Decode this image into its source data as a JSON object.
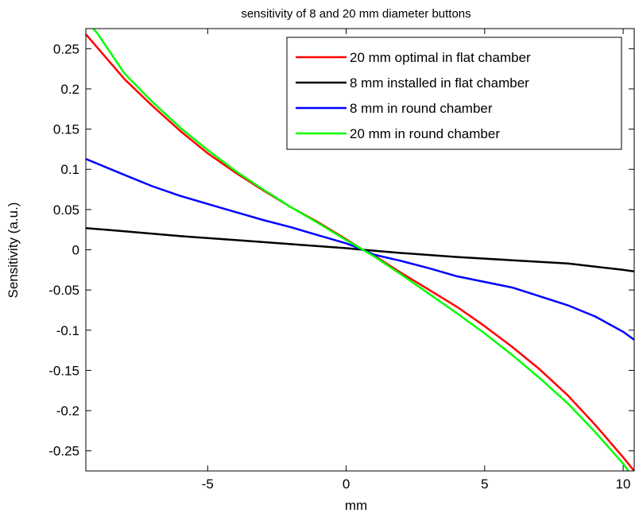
{
  "chart_data": {
    "type": "line",
    "title": "sensitivity of 8 and 20 mm diameter buttons",
    "xlabel": "mm",
    "ylabel": "Sensitivity (a.u.)",
    "xlim": [
      -9.4,
      10.4
    ],
    "ylim": [
      -0.275,
      0.275
    ],
    "x_ticks": [
      {
        "value": -5,
        "label": "-5"
      },
      {
        "value": 0,
        "label": "0"
      },
      {
        "value": 5,
        "label": "5"
      },
      {
        "value": 10,
        "label": "10"
      }
    ],
    "y_ticks": [
      {
        "value": 0.25,
        "label": "0.25"
      },
      {
        "value": 0.2,
        "label": "0.2"
      },
      {
        "value": 0.15,
        "label": "0.15"
      },
      {
        "value": 0.1,
        "label": "0.1"
      },
      {
        "value": 0.05,
        "label": "0.05"
      },
      {
        "value": 0,
        "label": "0"
      },
      {
        "value": -0.05,
        "label": "-0.05"
      },
      {
        "value": -0.1,
        "label": "-0.1"
      },
      {
        "value": -0.15,
        "label": "-0.15"
      },
      {
        "value": -0.2,
        "label": "-0.2"
      },
      {
        "value": -0.25,
        "label": "-0.25"
      }
    ],
    "grid": false,
    "legend_position": "top-right",
    "series": [
      {
        "name": "20 mm optimal in flat chamber",
        "color": "#ff0000",
        "x": [
          -9.4,
          -8,
          -7,
          -6,
          -5,
          -4,
          -3,
          -2,
          -1,
          0,
          0.6,
          1,
          2,
          3,
          4,
          5,
          6,
          7,
          8,
          9,
          10,
          10.4
        ],
        "y": [
          0.268,
          0.212,
          0.179,
          0.148,
          0.12,
          0.096,
          0.074,
          0.053,
          0.034,
          0.013,
          0.0,
          -0.007,
          -0.029,
          -0.05,
          -0.071,
          -0.095,
          -0.121,
          -0.149,
          -0.181,
          -0.218,
          -0.258,
          -0.275
        ]
      },
      {
        "name": "8 mm installed in flat chamber",
        "color": "#000000",
        "x": [
          -9.4,
          -8,
          -6,
          -4,
          -2,
          0,
          0.6,
          2,
          4,
          6,
          8,
          10,
          10.4
        ],
        "y": [
          0.027,
          0.023,
          0.017,
          0.012,
          0.007,
          0.002,
          0.0,
          -0.004,
          -0.009,
          -0.013,
          -0.017,
          -0.025,
          -0.027
        ]
      },
      {
        "name": "8 mm in round chamber",
        "color": "#0000ff",
        "x": [
          -9.4,
          -8,
          -7,
          -6,
          -5,
          -4,
          -3,
          -2,
          -1,
          0,
          0.6,
          1,
          2,
          3,
          4,
          5,
          6,
          7,
          8,
          9,
          10,
          10.4
        ],
        "y": [
          0.113,
          0.093,
          0.079,
          0.067,
          0.057,
          0.047,
          0.037,
          0.028,
          0.018,
          0.008,
          0.0,
          -0.006,
          -0.014,
          -0.023,
          -0.033,
          -0.04,
          -0.047,
          -0.058,
          -0.069,
          -0.083,
          -0.102,
          -0.112
        ]
      },
      {
        "name": "20 mm in round chamber",
        "color": "#00ff00",
        "x": [
          -9.4,
          -9,
          -8,
          -7,
          -6,
          -5,
          -4,
          -3,
          -2,
          -1,
          0,
          0.6,
          1,
          2,
          3,
          4,
          5,
          6,
          7,
          8,
          9,
          10,
          10.4
        ],
        "y": [
          0.285,
          0.27,
          0.219,
          0.184,
          0.152,
          0.124,
          0.098,
          0.075,
          0.053,
          0.033,
          0.012,
          0.0,
          -0.008,
          -0.031,
          -0.055,
          -0.079,
          -0.104,
          -0.131,
          -0.16,
          -0.191,
          -0.227,
          -0.266,
          -0.285
        ]
      }
    ]
  }
}
